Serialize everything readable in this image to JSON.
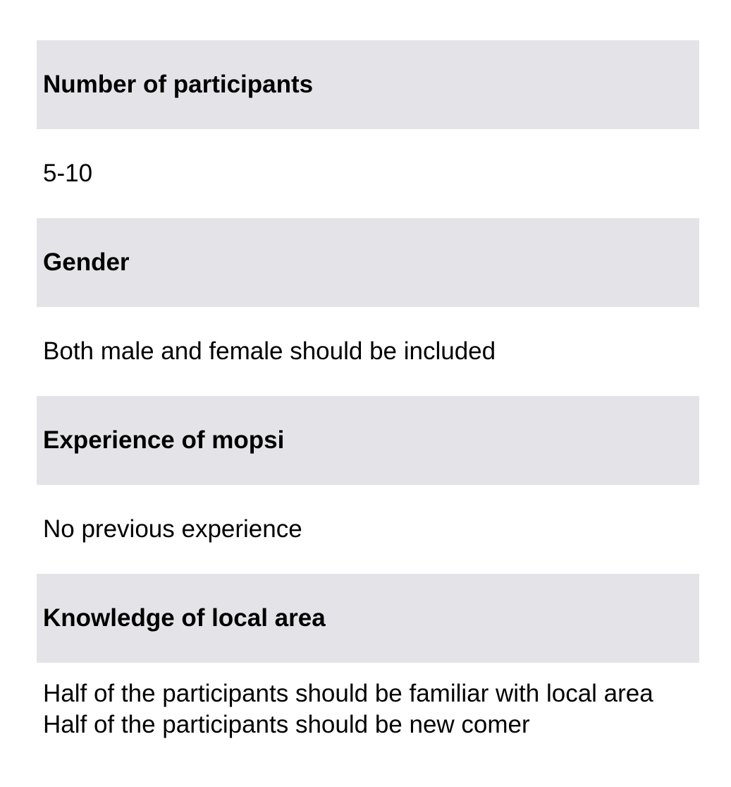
{
  "criteria": [
    {
      "heading": "Number of participants",
      "value_lines": [
        "5-10"
      ]
    },
    {
      "heading": "Gender",
      "value_lines": [
        "Both male and female should be included"
      ]
    },
    {
      "heading": "Experience of mopsi",
      "value_lines": [
        "No previous experience"
      ]
    },
    {
      "heading": "Knowledge of local area",
      "value_lines": [
        "Half of the participants should be familiar with local area",
        "Half of the participants should be new comer"
      ]
    }
  ]
}
